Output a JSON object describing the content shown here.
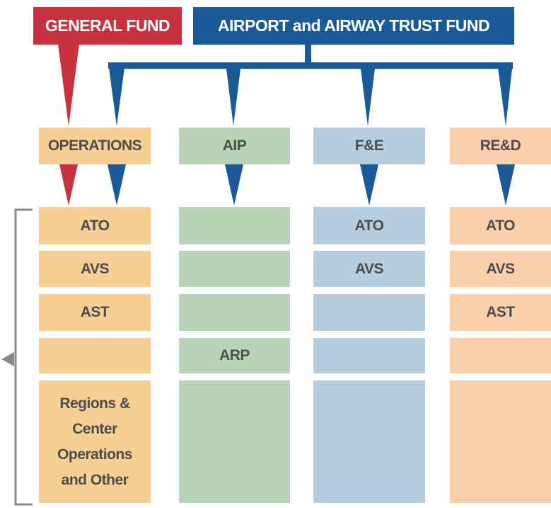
{
  "header": {
    "general_fund": "GENERAL FUND",
    "trust_fund": "AIRPORT and AIRWAY TRUST FUND"
  },
  "columns": [
    {
      "name": "OPERATIONS",
      "rows": [
        "ATO",
        "AVS",
        "AST",
        null,
        "Regions & Center Operations and Other"
      ]
    },
    {
      "name": "AIP",
      "rows": [
        null,
        null,
        null,
        "ARP",
        null
      ]
    },
    {
      "name": "F&E",
      "rows": [
        "ATO",
        "AVS",
        null,
        null,
        null
      ]
    },
    {
      "name": "RE&D",
      "rows": [
        "ATO",
        "AVS",
        "AST",
        null,
        null
      ]
    }
  ]
}
